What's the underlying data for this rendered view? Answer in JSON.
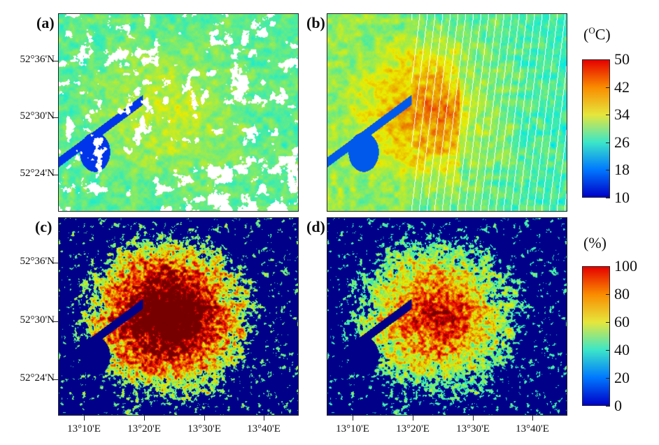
{
  "panels": {
    "a": {
      "letter": "(a)",
      "variable": "temperature",
      "type": "scattered-green-yellow-with-cloud-gaps"
    },
    "b": {
      "letter": "(b)",
      "variable": "temperature",
      "type": "striped-with-hot-urban-core"
    },
    "c": {
      "letter": "(c)",
      "variable": "percent",
      "type": "urban-high-fraction"
    },
    "d": {
      "letter": "(d)",
      "variable": "percent",
      "type": "urban-moderate-fraction"
    }
  },
  "y_ticks": [
    "52°36'N",
    "52°30'N",
    "52°24'N"
  ],
  "x_ticks": [
    "13°10'E",
    "13°20'E",
    "13°30'E",
    "13°40'E"
  ],
  "colorbar_temperature": {
    "title_prefix": "(",
    "title_sup": "O",
    "title_suffix": "C)",
    "ticks": [
      "50",
      "42",
      "34",
      "26",
      "18",
      "10"
    ],
    "min": 10,
    "max": 50
  },
  "colorbar_percent": {
    "title": "(%)",
    "ticks": [
      "100",
      "80",
      "60",
      "40",
      "20",
      "0"
    ],
    "min": 0,
    "max": 100
  },
  "colors": {
    "jet_low": "#0000c8",
    "jet_mid": "#3ce6c8",
    "jet_high": "#e60000"
  }
}
